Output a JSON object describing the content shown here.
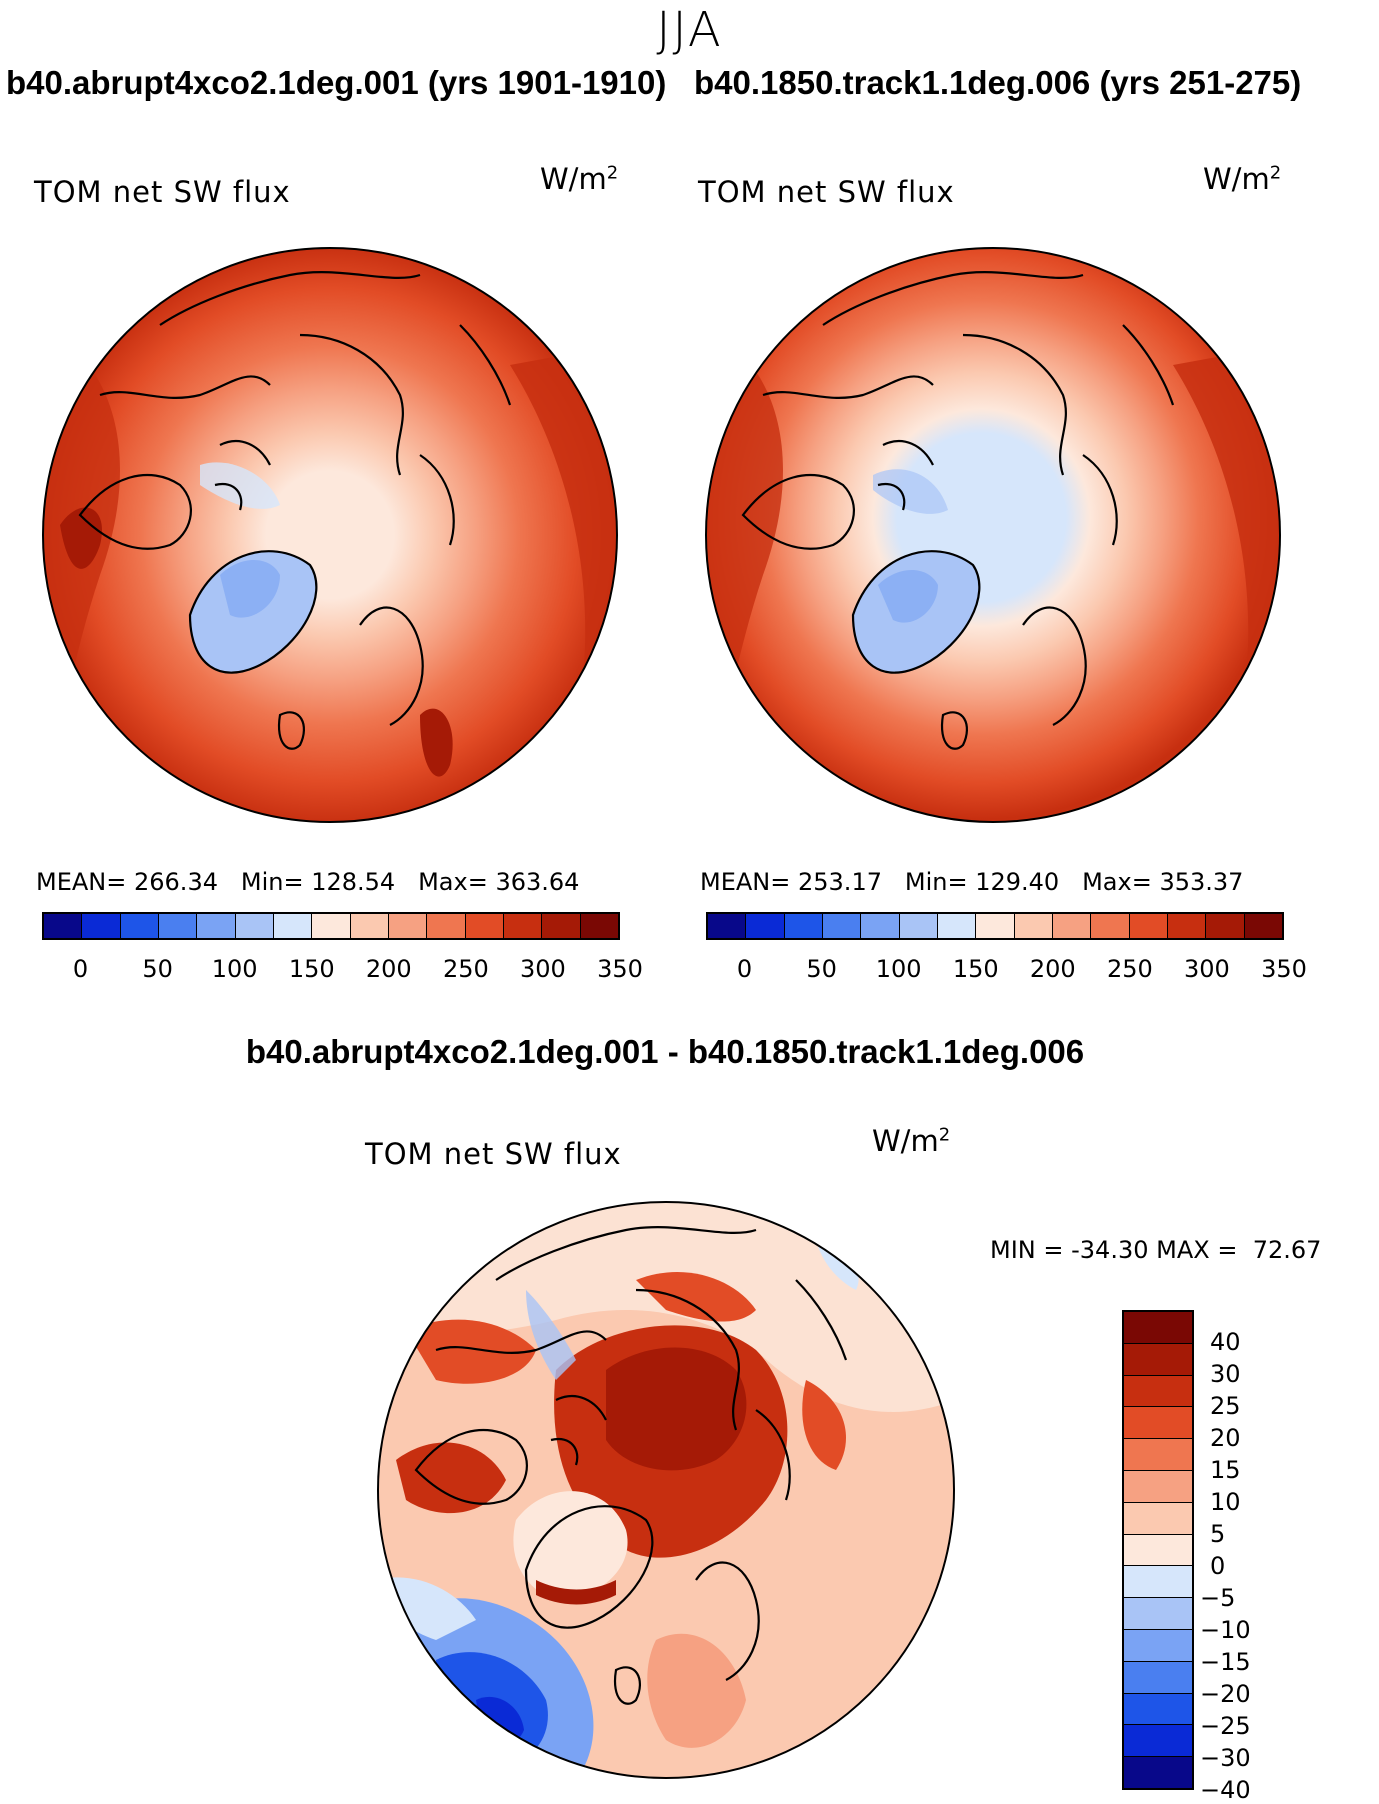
{
  "season": "JJA",
  "panels": [
    {
      "case_title": "b40.abrupt4xco2.1deg.001 (yrs 1901-1910)",
      "variable": "TOM net SW flux",
      "units_base": "W/m",
      "units_exp": "2",
      "stats": {
        "mean_label": "MEAN=",
        "mean": "266.34",
        "min_label": "Min=",
        "min": "128.54",
        "max_label": "Max=",
        "max": "363.64"
      },
      "colorbar_ticks": [
        "0",
        "50",
        "100",
        "150",
        "200",
        "250",
        "300",
        "350"
      ]
    },
    {
      "case_title": "b40.1850.track1.1deg.006 (yrs 251-275)",
      "variable": "TOM net SW flux",
      "units_base": "W/m",
      "units_exp": "2",
      "stats": {
        "mean_label": "MEAN=",
        "mean": "253.17",
        "min_label": "Min=",
        "min": "129.40",
        "max_label": "Max=",
        "max": "353.37"
      },
      "colorbar_ticks": [
        "0",
        "50",
        "100",
        "150",
        "200",
        "250",
        "300",
        "350"
      ]
    }
  ],
  "diff_panel": {
    "title": "b40.abrupt4xco2.1deg.001 - b40.1850.track1.1deg.006",
    "variable": "TOM net SW flux",
    "units_base": "W/m",
    "units_exp": "2",
    "min_label": "MIN =",
    "min": "-34.30",
    "max_label": "MAX =",
    "max": "72.67",
    "colorbar_ticks": [
      "40",
      "30",
      "25",
      "20",
      "15",
      "10",
      "5",
      "0",
      "-5",
      "-10",
      "-15",
      "-20",
      "-25",
      "-30",
      "-40"
    ]
  },
  "colors": {
    "abs_scale": [
      "#08088a",
      "#0a2ad6",
      "#1e55e8",
      "#4a7ff0",
      "#7aa3f4",
      "#a9c4f6",
      "#d6e6fb",
      "#fde8dc",
      "#fbc9b0",
      "#f6a182",
      "#ef7650",
      "#e24c26",
      "#c72f10",
      "#a51a06",
      "#7a0804"
    ],
    "diff_scale": [
      "#7a0804",
      "#a51a06",
      "#c72f10",
      "#e24c26",
      "#ef7650",
      "#f6a182",
      "#fbc9b0",
      "#fde8dc",
      "#d6e6fb",
      "#a9c4f6",
      "#7aa3f4",
      "#4a7ff0",
      "#1e55e8",
      "#0a2ad6",
      "#08088a"
    ]
  }
}
